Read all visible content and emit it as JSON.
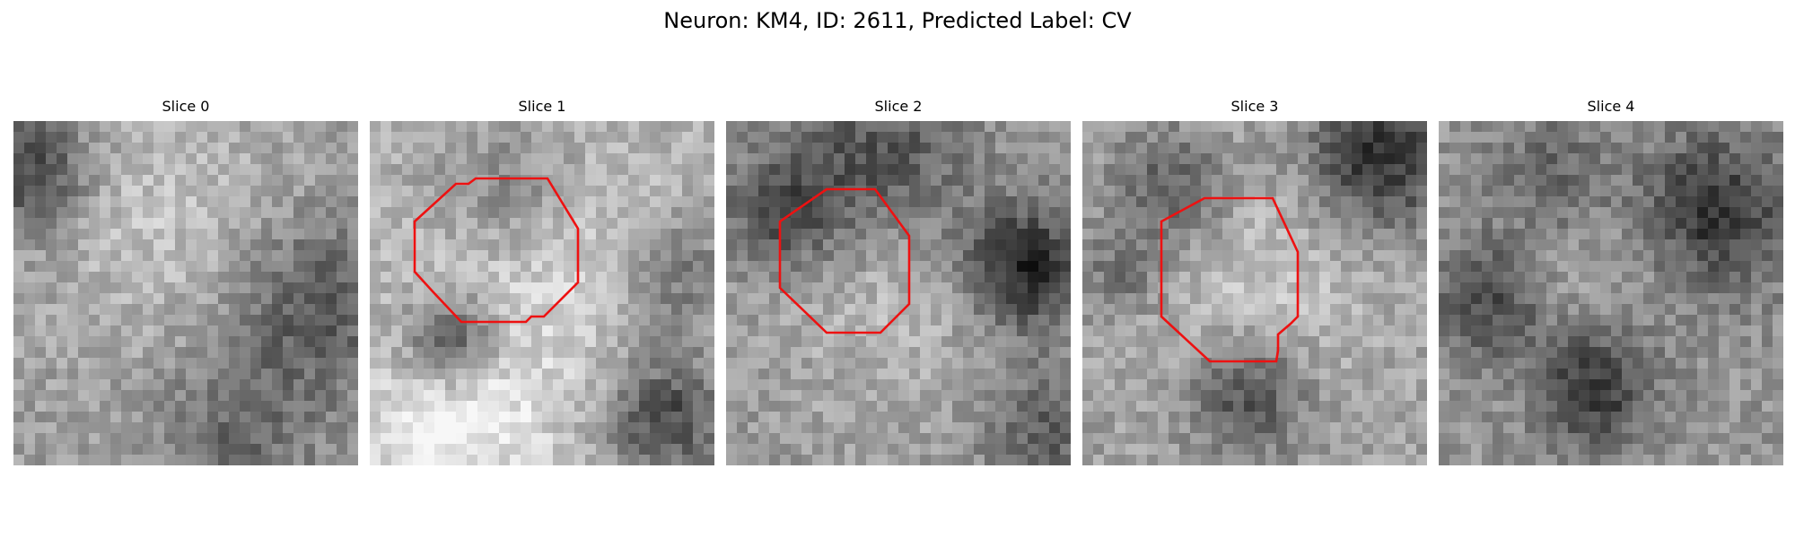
{
  "figure": {
    "title": "Neuron: KM4, ID: 2611, Predicted Label: CV"
  },
  "panels": [
    {
      "title": "Slice 0",
      "has_contour": false
    },
    {
      "title": "Slice 1",
      "has_contour": true
    },
    {
      "title": "Slice 2",
      "has_contour": true
    },
    {
      "title": "Slice 3",
      "has_contour": true
    },
    {
      "title": "Slice 4",
      "has_contour": false
    }
  ],
  "colors": {
    "contour": "#ee1111",
    "background": "#ffffff"
  }
}
